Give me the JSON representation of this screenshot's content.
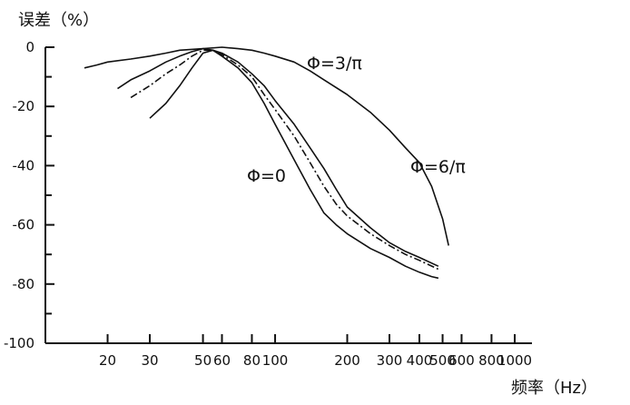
{
  "chart_data": {
    "type": "line",
    "title": "",
    "ylabel": "误差（%）",
    "xlabel": "频率（Hz）",
    "xscale": "log",
    "xlim": [
      11,
      1180
    ],
    "ylim": [
      -100,
      0
    ],
    "y_ticks": [
      0,
      -20,
      -40,
      -60,
      -80,
      -100
    ],
    "y_tick_labels": [
      "0",
      "-20",
      "-40",
      "-60",
      "-80",
      "-100"
    ],
    "x_ticks": [
      20,
      30,
      50,
      60,
      80,
      100,
      200,
      300,
      400,
      500,
      600,
      800,
      1000
    ],
    "x_tick_labels": [
      "20",
      "30",
      "50",
      "60",
      "80",
      "100",
      "200",
      "300",
      "400",
      "500",
      "600",
      "800",
      "1000"
    ],
    "grid": false,
    "legend": "none",
    "series": [
      {
        "label": "Φ=0",
        "points": [
          [
            22,
            -14
          ],
          [
            25,
            -11
          ],
          [
            30,
            -8
          ],
          [
            35,
            -5
          ],
          [
            40,
            -3
          ],
          [
            45,
            -1.5
          ],
          [
            50,
            -0.5
          ],
          [
            55,
            -1
          ],
          [
            60,
            -3
          ],
          [
            70,
            -7
          ],
          [
            80,
            -12
          ],
          [
            90,
            -19
          ],
          [
            100,
            -26
          ],
          [
            120,
            -38
          ],
          [
            140,
            -48
          ],
          [
            160,
            -56
          ],
          [
            180,
            -60
          ],
          [
            200,
            -63
          ],
          [
            250,
            -68
          ],
          [
            300,
            -71
          ],
          [
            350,
            -74
          ],
          [
            400,
            -76
          ],
          [
            450,
            -77.5
          ],
          [
            480,
            -78
          ]
        ]
      },
      {
        "label": "",
        "style": "dashdot",
        "points": [
          [
            25,
            -17
          ],
          [
            30,
            -13
          ],
          [
            35,
            -9
          ],
          [
            40,
            -6
          ],
          [
            45,
            -3
          ],
          [
            50,
            -1
          ],
          [
            55,
            -1
          ],
          [
            60,
            -2.5
          ],
          [
            70,
            -6
          ],
          [
            80,
            -10
          ],
          [
            90,
            -16
          ],
          [
            100,
            -21
          ],
          [
            120,
            -30
          ],
          [
            140,
            -39
          ],
          [
            160,
            -47
          ],
          [
            180,
            -53
          ],
          [
            200,
            -57
          ],
          [
            250,
            -63
          ],
          [
            300,
            -67
          ],
          [
            350,
            -70
          ],
          [
            400,
            -72
          ],
          [
            480,
            -75
          ]
        ]
      },
      {
        "label": "",
        "points": [
          [
            30,
            -24
          ],
          [
            35,
            -19
          ],
          [
            40,
            -13
          ],
          [
            45,
            -7
          ],
          [
            50,
            -2
          ],
          [
            55,
            -1
          ],
          [
            60,
            -2
          ],
          [
            70,
            -5
          ],
          [
            80,
            -9
          ],
          [
            90,
            -13
          ],
          [
            100,
            -18
          ],
          [
            120,
            -26
          ],
          [
            140,
            -34
          ],
          [
            160,
            -41
          ],
          [
            180,
            -48
          ],
          [
            200,
            -54
          ],
          [
            250,
            -61
          ],
          [
            300,
            -66
          ],
          [
            350,
            -69
          ],
          [
            400,
            -71
          ],
          [
            480,
            -74
          ]
        ]
      },
      {
        "label": "Φ=3/π",
        "points": [
          [
            16,
            -7
          ],
          [
            18,
            -6
          ],
          [
            20,
            -5
          ],
          [
            25,
            -4
          ],
          [
            30,
            -3
          ],
          [
            35,
            -2
          ],
          [
            40,
            -1
          ],
          [
            50,
            -0.5
          ],
          [
            60,
            0
          ],
          [
            70,
            -0.5
          ],
          [
            80,
            -1
          ],
          [
            90,
            -2
          ],
          [
            100,
            -3
          ],
          [
            120,
            -5
          ],
          [
            140,
            -8
          ],
          [
            160,
            -11
          ],
          [
            200,
            -16
          ],
          [
            250,
            -22
          ],
          [
            300,
            -28
          ],
          [
            350,
            -34
          ],
          [
            400,
            -39
          ],
          [
            450,
            -47
          ],
          [
            500,
            -58
          ],
          [
            530,
            -67
          ]
        ]
      }
    ],
    "annotations": [
      {
        "text": "Φ=3/π"
      },
      {
        "text": "Φ=6/π"
      },
      {
        "text": "Φ=0"
      }
    ]
  }
}
